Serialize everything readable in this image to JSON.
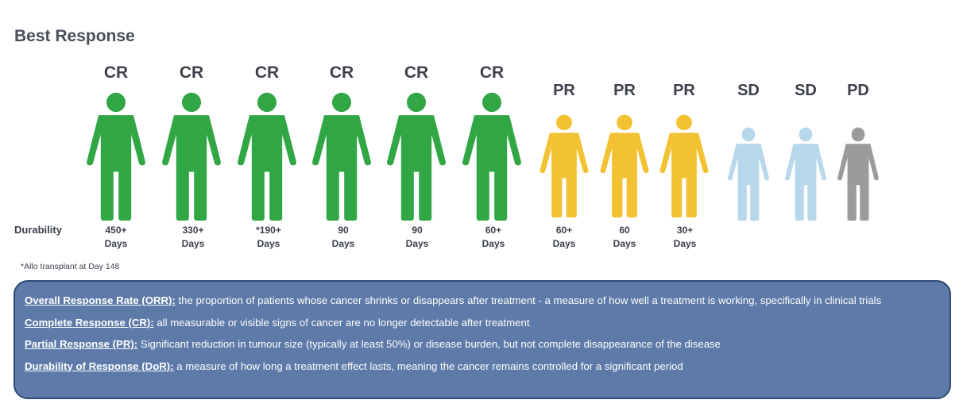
{
  "title": "Best Response",
  "durability_label": "Durability",
  "footnote": "*Allo transplant at Day 148",
  "colors": {
    "CR": "#31a645",
    "PR": "#f3c232",
    "SD": "#b7d7ea",
    "PD": "#9b9b9b"
  },
  "patients": [
    {
      "response": "CR",
      "dur_top": "450+",
      "dur_bottom": "Days"
    },
    {
      "response": "CR",
      "dur_top": "330+",
      "dur_bottom": "Days"
    },
    {
      "response": "CR",
      "dur_top": "*190+",
      "dur_bottom": "Days"
    },
    {
      "response": "CR",
      "dur_top": "90",
      "dur_bottom": "Days"
    },
    {
      "response": "CR",
      "dur_top": "90",
      "dur_bottom": "Days"
    },
    {
      "response": "CR",
      "dur_top": "60+",
      "dur_bottom": "Days"
    },
    {
      "response": "PR",
      "dur_top": "60+",
      "dur_bottom": "Days"
    },
    {
      "response": "PR",
      "dur_top": "60",
      "dur_bottom": "Days"
    },
    {
      "response": "PR",
      "dur_top": "30+",
      "dur_bottom": "Days"
    },
    {
      "response": "SD"
    },
    {
      "response": "SD"
    },
    {
      "response": "PD"
    }
  ],
  "definitions": [
    {
      "term": "Overall Response Rate (ORR):",
      "text": " the proportion of patients whose cancer shrinks or disappears after treatment - a measure of how well a treatment is working, specifically in clinical trials"
    },
    {
      "term": "Complete Response (CR):",
      "text": " all measurable or visible signs of cancer are no longer detectable after treatment"
    },
    {
      "term": "Partial Response (PR):",
      "text": " Significant reduction in tumour size (typically at least 50%) or disease burden, but not complete disappearance of the disease"
    },
    {
      "term": "Durability of Response (DoR):",
      "text": " a measure of how long a treatment effect lasts, meaning the cancer remains controlled for a significant period"
    }
  ]
}
